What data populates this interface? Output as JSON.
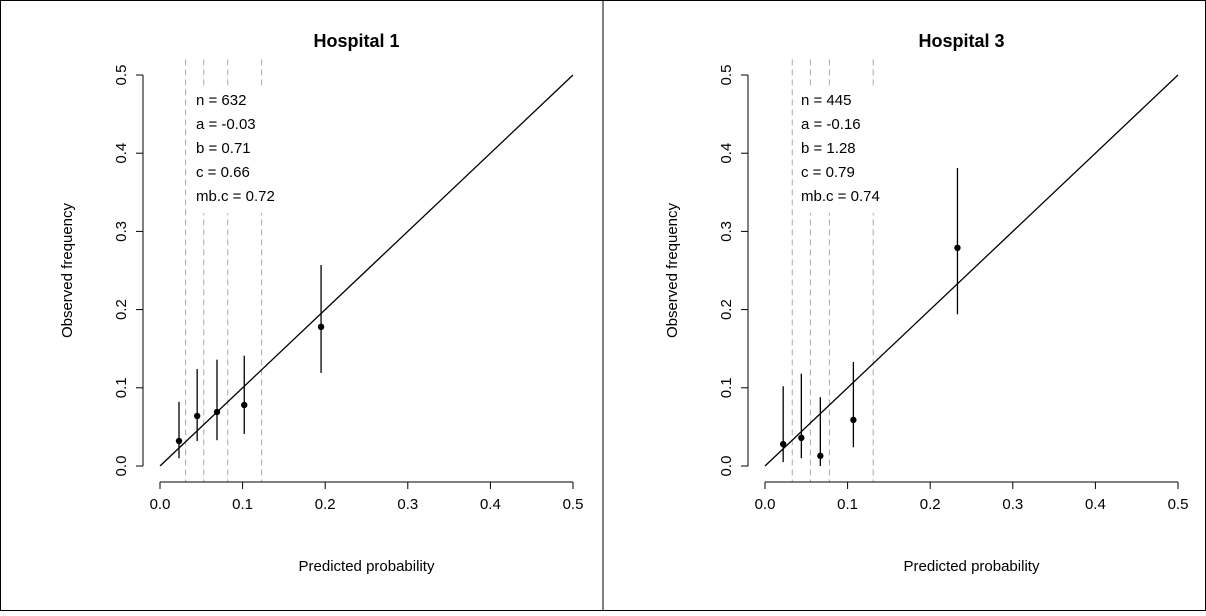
{
  "chart_data": [
    {
      "type": "calibration",
      "title": "Hospital 1",
      "x_label": "Predicted probability",
      "y_label": "Observed frequency",
      "annotations": [
        "n = 632",
        "a = -0.03",
        "b = 0.71",
        "c = 0.66",
        "mb.c = 0.72"
      ],
      "x": [
        0.023,
        0.045,
        0.069,
        0.102,
        0.195
      ],
      "values": [
        0.032,
        0.064,
        0.069,
        0.078,
        0.178
      ],
      "lower": [
        0.01,
        0.032,
        0.033,
        0.041,
        0.119
      ],
      "upper": [
        0.082,
        0.124,
        0.136,
        0.141,
        0.257
      ],
      "cutoffs": [
        0.031,
        0.053,
        0.082,
        0.123
      ],
      "xlim": [
        0,
        0.5
      ],
      "ylim": [
        0,
        0.5
      ],
      "xticks": [
        {
          "value": 0,
          "label": "0.0"
        },
        0.1,
        0.2,
        0.3,
        0.4,
        0.5
      ],
      "yticks": [
        {
          "value": 0,
          "label": "0.0"
        },
        0.1,
        0.2,
        0.3,
        0.4,
        0.5
      ],
      "color": "#000000"
    },
    {
      "type": "calibration",
      "title": "Hospital 3",
      "x_label": "Predicted probability",
      "y_label": "Observed frequency",
      "annotations": [
        "n = 445",
        "a = -0.16",
        "b = 1.28",
        "c = 0.79",
        "mb.c = 0.74"
      ],
      "x": [
        0.022,
        0.044,
        0.067,
        0.107,
        0.233
      ],
      "values": [
        0.028,
        0.036,
        0.013,
        0.059,
        0.279
      ],
      "lower": [
        0.005,
        0.01,
        0.0,
        0.024,
        0.194
      ],
      "upper": [
        0.102,
        0.118,
        0.088,
        0.133,
        0.381
      ],
      "cutoffs": [
        0.033,
        0.055,
        0.078,
        0.131
      ],
      "xlim": [
        0,
        0.5
      ],
      "ylim": [
        0,
        0.5
      ],
      "xticks": [
        {
          "value": 0,
          "label": "0.0"
        },
        0.1,
        0.2,
        0.3,
        0.4,
        0.5
      ],
      "yticks": [
        {
          "value": 0,
          "label": "0.0"
        },
        0.1,
        0.2,
        0.3,
        0.4,
        0.5
      ],
      "color": "#000000"
    }
  ]
}
